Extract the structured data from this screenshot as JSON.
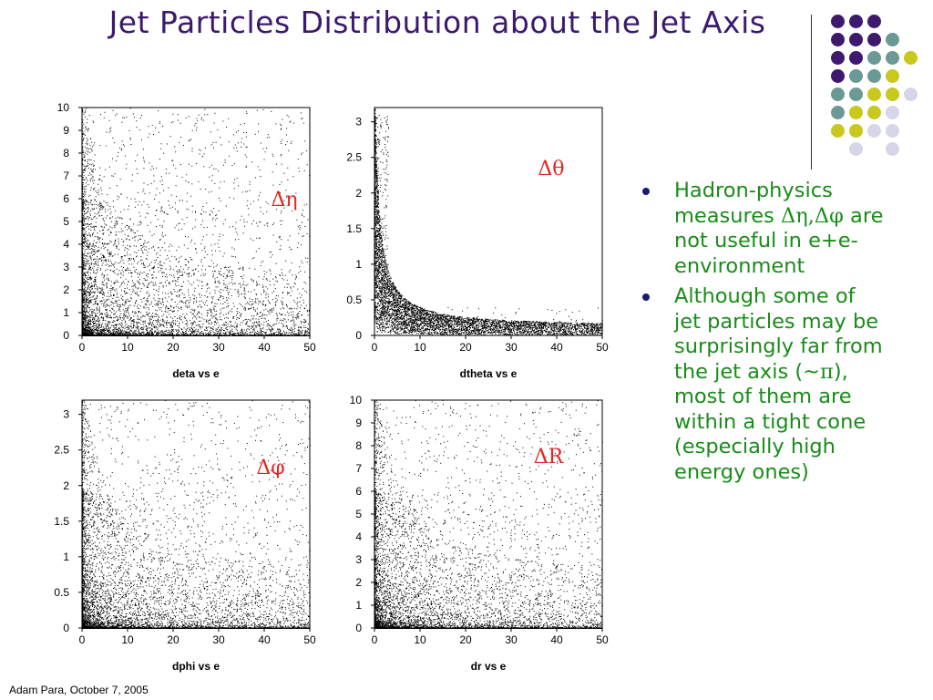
{
  "slide": {
    "title": "Jet Particles Distribution about the Jet Axis",
    "footer": "Adam Para, October 7, 2005",
    "colors": {
      "title": "#3b1a6e",
      "bullet_text": "#1a8c1a",
      "plot_symbol": "#e8231f",
      "deco_purple": "#3d1a6e",
      "deco_teal": "#6b9a96",
      "deco_yellow": "#c8c81e",
      "deco_lavender": "#d6d6e8"
    }
  },
  "decor": {
    "dot_grid": [
      [
        "purple",
        "purple",
        "purple",
        "",
        "",
        ""
      ],
      [
        "purple",
        "purple",
        "purple",
        "teal",
        "",
        ""
      ],
      [
        "purple",
        "purple",
        "teal",
        "teal",
        "yellow",
        ""
      ],
      [
        "purple",
        "teal",
        "teal",
        "yellow",
        "",
        ""
      ],
      [
        "teal",
        "teal",
        "yellow",
        "yellow",
        "lavender",
        ""
      ],
      [
        "teal",
        "yellow",
        "yellow",
        "lavender",
        "",
        ""
      ],
      [
        "yellow",
        "yellow",
        "lavender",
        "lavender",
        "",
        ""
      ],
      [
        "",
        "lavender",
        "",
        "lavender",
        "",
        ""
      ]
    ]
  },
  "bullets": [
    {
      "pre": "Hadron-physics measures ",
      "greek": "Δη,Δφ",
      "post": " are not useful in e+e- environment"
    },
    {
      "pre": "Although some of jet particles may be surprisingly far from the jet axis (~",
      "greek": "π",
      "post": "), most of them are within a tight cone (especially high energy ones)"
    }
  ],
  "chart_data": [
    {
      "type": "scatter",
      "xlabel": "deta vs e",
      "symbol_label": "Δη",
      "xlim": [
        0,
        50
      ],
      "ylim": [
        0,
        10
      ],
      "xticks": [
        0,
        10,
        20,
        30,
        40,
        50
      ],
      "yticks": [
        0,
        1,
        2,
        3,
        4,
        5,
        6,
        7,
        8,
        9,
        10
      ],
      "ytick_labels": [
        "0",
        "1",
        "2",
        "3",
        "4",
        "5",
        "6",
        "7",
        "8",
        "9",
        "10"
      ],
      "distribution": "dense near x≈0–5 and y≈0–1; sparse points spread across full range"
    },
    {
      "type": "scatter",
      "xlabel": "dtheta vs e",
      "symbol_label": "Δθ",
      "xlim": [
        0,
        50
      ],
      "ylim": [
        0,
        3.2
      ],
      "xticks": [
        0,
        10,
        20,
        30,
        40,
        50
      ],
      "yticks": [
        0,
        0.5,
        1,
        1.5,
        2,
        2.5,
        3
      ],
      "ytick_labels": [
        "0",
        "0.5",
        "1",
        "1.5",
        "2",
        "2.5",
        "3"
      ],
      "distribution": "concentrated along a falling curve from high y at small x to y≈0.1 at x=50"
    },
    {
      "type": "scatter",
      "xlabel": "dphi vs e",
      "symbol_label": "Δφ",
      "xlim": [
        0,
        50
      ],
      "ylim": [
        0,
        3.2
      ],
      "xticks": [
        0,
        10,
        20,
        30,
        40,
        50
      ],
      "yticks": [
        0,
        0.5,
        1,
        1.5,
        2,
        2.5,
        3
      ],
      "ytick_labels": [
        "0",
        "0.5",
        "1",
        "1.5",
        "2",
        "2.5",
        "3"
      ],
      "distribution": "very dense near origin, fanning out across whole range"
    },
    {
      "type": "scatter",
      "xlabel": "dr vs e",
      "symbol_label": "ΔR",
      "xlim": [
        0,
        50
      ],
      "ylim": [
        0,
        10
      ],
      "xticks": [
        0,
        10,
        20,
        30,
        40,
        50
      ],
      "yticks": [
        0,
        1,
        2,
        3,
        4,
        5,
        6,
        7,
        8,
        9,
        10
      ],
      "ytick_labels": [
        "0",
        "1",
        "2",
        "3",
        "4",
        "5",
        "6",
        "7",
        "8",
        "9",
        "10"
      ],
      "distribution": "dense near origin, sparse spread up to y=10"
    }
  ]
}
